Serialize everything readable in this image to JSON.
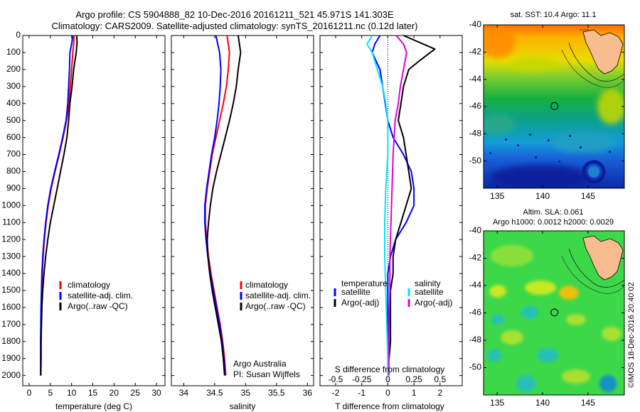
{
  "title": {
    "line1": "Argo profile: CS 5904888_82 10-Dec-2016 20161211_521 45.971S 141.303E",
    "line2": "Climatology: CARS2009. Satellite-adjusted climatology: synTS_20161211.nc (0.12d later)"
  },
  "colors": {
    "clim": "#ff0000",
    "sat": "#0000ff",
    "argo": "#000000",
    "sat_s": "#00e5ff",
    "argo_s": "#e000e0",
    "land": "#f7bd8e"
  },
  "y_axis": {
    "ticks": [
      "0",
      "100",
      "200",
      "300",
      "400",
      "500",
      "600",
      "700",
      "800",
      "900",
      "1000",
      "1100",
      "1200",
      "1300",
      "1400",
      "1500",
      "1600",
      "1700",
      "1800",
      "1900",
      "2000"
    ],
    "range": [
      0,
      2060
    ]
  },
  "panels": {
    "temperature": {
      "xlabel": "temperature (deg C)",
      "ticks": [
        "0",
        "5",
        "10",
        "15",
        "20",
        "25",
        "30"
      ],
      "xlim": [
        -1.5,
        32
      ],
      "legend": [
        "climatology",
        "satellite-adj. clim.",
        "Argo(..raw -QC)"
      ]
    },
    "salinity": {
      "xlabel": "salinity",
      "ticks": [
        "34",
        "34.5",
        "35",
        "35.5",
        "36"
      ],
      "xlim": [
        33.8,
        36.1
      ],
      "legend": [
        "climatology",
        "satellite-adj. clim.",
        "Argo(..raw -QC)"
      ],
      "note1": "Argo Australia",
      "note2": "PI: Susan Wijffels"
    },
    "difference": {
      "xlabel": "T difference from climatology",
      "top_label": "S difference from climatology",
      "ticks_t": [
        "-2",
        "-1",
        "0",
        "1",
        "2"
      ],
      "ticks_s": [
        "-0.5",
        "-0.25",
        "0",
        "0.25",
        "0.5"
      ],
      "xlim": [
        -2.6,
        2.85
      ],
      "legend_t_title": "temperature",
      "legend_s_title": "salinity",
      "legend_t": [
        "satellite",
        "Argo(-adj)"
      ],
      "legend_s": [
        "satellite",
        "Argo(-adj)"
      ]
    }
  },
  "maps": {
    "sst": {
      "title": "sat. SST: 10.4 Argo: 11.1",
      "y_ticks": [
        "-40",
        "-42",
        "-44",
        "-46",
        "-48",
        "-50"
      ],
      "x_ticks": [
        "135",
        "140",
        "145"
      ]
    },
    "sla": {
      "title1": "Altim. SLA: 0.061",
      "title2": "Argo h1000: 0.0012 h2000: 0.0029",
      "y_ticks": [
        "-40",
        "-42",
        "-44",
        "-46",
        "-48",
        "-50"
      ],
      "x_ticks": [
        "135",
        "140",
        "145"
      ]
    },
    "credit": "©IMOS 18-Dec-2016 20:40:02"
  },
  "chart_data": [
    {
      "type": "line",
      "name": "temperature profile",
      "xlabel": "temperature (deg C)",
      "ylabel": "depth",
      "xlim": [
        -1.5,
        32
      ],
      "ylim": [
        2060,
        0
      ],
      "series": [
        {
          "name": "climatology",
          "color": "#ff0000",
          "x": [
            10.6,
            10.5,
            10.3,
            10.0,
            9.7,
            9.4,
            8.8,
            8.0,
            7.1,
            6.1,
            5.2,
            4.5,
            4.0,
            3.6,
            3.3,
            3.1,
            3.0,
            2.9,
            2.85,
            2.8,
            2.8,
            2.75
          ],
          "y": [
            0,
            50,
            100,
            200,
            300,
            400,
            500,
            600,
            700,
            800,
            900,
            1000,
            1100,
            1200,
            1300,
            1400,
            1500,
            1600,
            1700,
            1800,
            1900,
            2000
          ]
        },
        {
          "name": "satellite-adj. clim.",
          "color": "#0000ff",
          "x": [
            10.3,
            10.0,
            9.6,
            9.5,
            9.3,
            9.1,
            8.7,
            7.9,
            7.0,
            6.0,
            5.1,
            4.4,
            3.9,
            3.5,
            3.2,
            3.0,
            2.9,
            2.8,
            2.75,
            2.7,
            2.7,
            2.7
          ],
          "y": [
            0,
            50,
            100,
            200,
            300,
            400,
            500,
            600,
            700,
            800,
            900,
            1000,
            1100,
            1200,
            1300,
            1400,
            1500,
            1600,
            1700,
            1800,
            1900,
            2000
          ]
        },
        {
          "name": "Argo(..raw -QC)",
          "color": "#000000",
          "x": [
            11.2,
            11.3,
            11.1,
            10.8,
            10.5,
            10.1,
            9.6,
            9.3,
            8.9,
            8.2,
            7.4,
            6.6,
            5.8,
            5.0,
            4.4,
            3.9,
            3.5,
            3.2,
            3.0,
            2.9,
            2.8,
            2.8,
            2.75
          ],
          "y": [
            0,
            40,
            100,
            150,
            200,
            300,
            400,
            500,
            600,
            700,
            800,
            900,
            1000,
            1100,
            1200,
            1300,
            1400,
            1500,
            1600,
            1700,
            1800,
            1900,
            2000
          ]
        }
      ]
    },
    {
      "type": "line",
      "name": "salinity profile",
      "xlabel": "salinity",
      "ylabel": "depth",
      "xlim": [
        33.8,
        36.1
      ],
      "ylim": [
        2060,
        0
      ],
      "series": [
        {
          "name": "climatology",
          "color": "#ff0000",
          "x": [
            34.7,
            34.72,
            34.74,
            34.72,
            34.69,
            34.64,
            34.58,
            34.52,
            34.46,
            34.42,
            34.38,
            34.35,
            34.35,
            34.37,
            34.4,
            34.44,
            34.49,
            34.54,
            34.59,
            34.63,
            34.66,
            34.68
          ],
          "y": [
            0,
            50,
            100,
            200,
            300,
            400,
            500,
            600,
            700,
            800,
            900,
            1000,
            1100,
            1200,
            1300,
            1400,
            1500,
            1600,
            1700,
            1800,
            1900,
            2000
          ]
        },
        {
          "name": "satellite-adj. clim.",
          "color": "#0000ff",
          "x": [
            34.52,
            34.55,
            34.58,
            34.6,
            34.59,
            34.57,
            34.54,
            34.5,
            34.45,
            34.41,
            34.37,
            34.34,
            34.34,
            34.36,
            34.39,
            34.43,
            34.48,
            34.53,
            34.58,
            34.62,
            34.65,
            34.67
          ],
          "y": [
            0,
            50,
            100,
            200,
            300,
            400,
            500,
            600,
            700,
            800,
            900,
            1000,
            1100,
            1200,
            1300,
            1400,
            1500,
            1600,
            1700,
            1800,
            1900,
            2000
          ]
        },
        {
          "name": "Argo(..raw -QC)",
          "color": "#000000",
          "x": [
            34.88,
            34.9,
            34.92,
            34.88,
            34.85,
            34.8,
            34.74,
            34.67,
            34.6,
            34.53,
            34.47,
            34.43,
            34.4,
            34.38,
            34.39,
            34.42,
            34.46,
            34.51,
            34.56,
            34.61,
            34.64,
            34.66
          ],
          "y": [
            0,
            50,
            100,
            200,
            300,
            400,
            500,
            600,
            700,
            800,
            900,
            1000,
            1100,
            1200,
            1300,
            1400,
            1500,
            1600,
            1700,
            1800,
            1900,
            2000
          ]
        }
      ]
    },
    {
      "type": "line",
      "name": "difference from climatology",
      "xlabel": "T difference from climatology",
      "ylabel": "depth",
      "xlim": [
        -2.6,
        2.85
      ],
      "ylim": [
        2060,
        0
      ],
      "series": [
        {
          "name": "temperature satellite",
          "color": "#0000ff",
          "x": [
            -0.3,
            -0.5,
            -0.6,
            -0.3,
            -0.2,
            -0.1,
            0.0,
            0.2,
            0.6,
            0.9,
            1.0,
            1.0,
            0.7,
            0.3,
            0.1,
            0.0,
            0.0,
            0.0,
            0.0,
            0.0,
            0.0
          ],
          "y": [
            0,
            50,
            100,
            200,
            300,
            400,
            500,
            600,
            700,
            800,
            900,
            1000,
            1100,
            1200,
            1300,
            1400,
            1500,
            1600,
            1700,
            1800,
            1900
          ]
        },
        {
          "name": "temperature Argo(-adj)",
          "color": "#000000",
          "x": [
            0.6,
            1.8,
            1.2,
            0.8,
            0.6,
            0.5,
            0.4,
            0.6,
            0.7,
            0.8,
            0.9,
            0.7,
            0.5,
            0.3,
            0.2,
            0.2,
            0.1,
            0.1,
            0.1,
            0.1,
            0.05
          ],
          "y": [
            0,
            80,
            150,
            200,
            300,
            400,
            500,
            600,
            700,
            800,
            900,
            1000,
            1100,
            1200,
            1300,
            1400,
            1500,
            1600,
            1700,
            1800,
            1900
          ]
        },
        {
          "name": "salinity satellite",
          "color": "#00e5ff",
          "x": [
            -0.15,
            -0.2,
            -0.15,
            -0.1,
            -0.05,
            -0.02,
            0.0,
            0.0,
            -0.02,
            -0.03,
            -0.03,
            -0.02,
            -0.01,
            0.0,
            0.0
          ],
          "y": [
            0,
            50,
            100,
            200,
            300,
            400,
            500,
            700,
            900,
            1100,
            1300,
            1500,
            1700,
            1900,
            2000
          ]
        },
        {
          "name": "salinity Argo(-adj)",
          "color": "#e000e0",
          "x": [
            0.08,
            0.15,
            0.18,
            0.15,
            0.12,
            0.1,
            0.07,
            0.05,
            0.04,
            0.03,
            0.02,
            0.02,
            0.01,
            0.01,
            0.01
          ],
          "y": [
            0,
            50,
            100,
            200,
            300,
            400,
            500,
            700,
            900,
            1100,
            1300,
            1500,
            1700,
            1900,
            2000
          ]
        }
      ]
    },
    {
      "type": "heatmap",
      "name": "sat. SST map",
      "title": "sat. SST: 10.4 Argo: 11.1",
      "xlim": [
        133.5,
        149
      ],
      "ylim": [
        -52,
        -40
      ],
      "argo_position": {
        "lon": 141.303,
        "lat": -45.971
      }
    },
    {
      "type": "heatmap",
      "name": "Altim. SLA map",
      "title": "Altim. SLA: 0.061",
      "xlim": [
        133.5,
        149
      ],
      "ylim": [
        -52,
        -40
      ],
      "argo_position": {
        "lon": 141.303,
        "lat": -45.971
      }
    }
  ]
}
